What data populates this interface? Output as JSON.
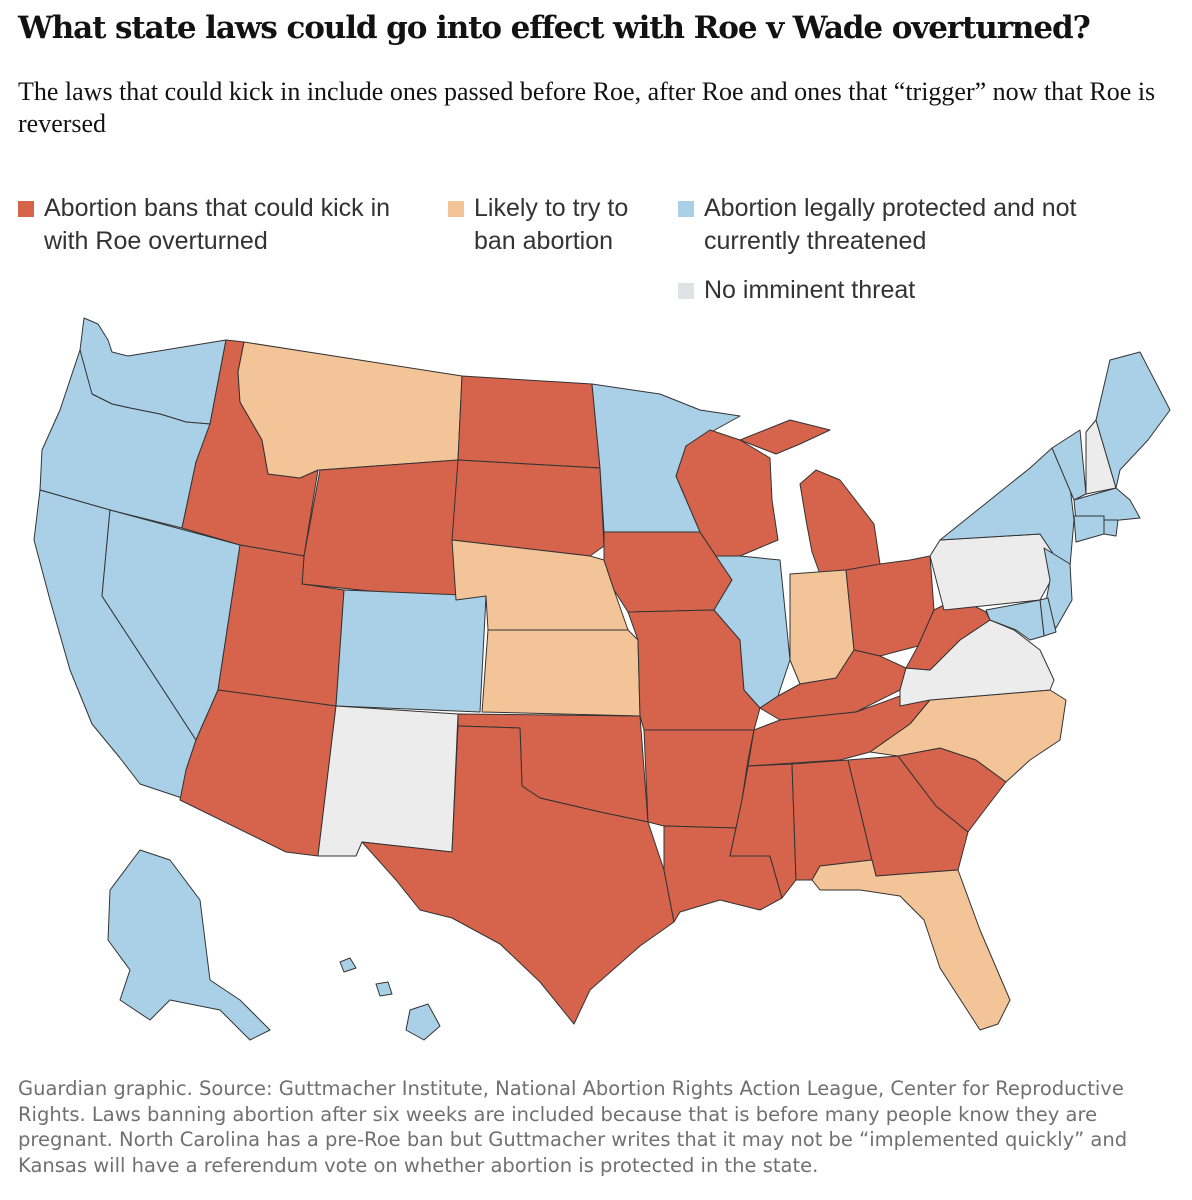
{
  "header": {
    "title": "What state laws could go into effect with Roe v Wade overturned?",
    "subtitle": "The laws that could kick in include ones passed before Roe, after Roe and ones that “trigger” now that Roe is reversed"
  },
  "legend": {
    "ban": "Abortion bans that could kick in with Roe overturned",
    "likely": "Likely to try to ban abortion",
    "protected": "Abortion legally protected and not currently threatened",
    "none": "No imminent threat"
  },
  "colors": {
    "ban": "#d6634c",
    "likely": "#f3c497",
    "protected": "#a9d0e7",
    "none": "#ececec"
  },
  "map": {
    "states": [
      {
        "name": "Washington",
        "category": "protected"
      },
      {
        "name": "Oregon",
        "category": "protected"
      },
      {
        "name": "California",
        "category": "protected"
      },
      {
        "name": "Nevada",
        "category": "protected"
      },
      {
        "name": "Idaho",
        "category": "ban"
      },
      {
        "name": "Montana",
        "category": "likely"
      },
      {
        "name": "Wyoming",
        "category": "ban"
      },
      {
        "name": "Utah",
        "category": "ban"
      },
      {
        "name": "Arizona",
        "category": "ban"
      },
      {
        "name": "Colorado",
        "category": "protected"
      },
      {
        "name": "New Mexico",
        "category": "none"
      },
      {
        "name": "North Dakota",
        "category": "ban"
      },
      {
        "name": "South Dakota",
        "category": "ban"
      },
      {
        "name": "Nebraska",
        "category": "likely"
      },
      {
        "name": "Kansas",
        "category": "likely"
      },
      {
        "name": "Oklahoma",
        "category": "ban"
      },
      {
        "name": "Texas",
        "category": "ban"
      },
      {
        "name": "Minnesota",
        "category": "protected"
      },
      {
        "name": "Iowa",
        "category": "ban"
      },
      {
        "name": "Missouri",
        "category": "ban"
      },
      {
        "name": "Arkansas",
        "category": "ban"
      },
      {
        "name": "Louisiana",
        "category": "ban"
      },
      {
        "name": "Wisconsin",
        "category": "ban"
      },
      {
        "name": "Illinois",
        "category": "protected"
      },
      {
        "name": "Michigan",
        "category": "ban"
      },
      {
        "name": "Indiana",
        "category": "likely"
      },
      {
        "name": "Ohio",
        "category": "ban"
      },
      {
        "name": "Kentucky",
        "category": "ban"
      },
      {
        "name": "Tennessee",
        "category": "ban"
      },
      {
        "name": "Mississippi",
        "category": "ban"
      },
      {
        "name": "Alabama",
        "category": "ban"
      },
      {
        "name": "Georgia",
        "category": "ban"
      },
      {
        "name": "Florida",
        "category": "likely"
      },
      {
        "name": "South Carolina",
        "category": "ban"
      },
      {
        "name": "North Carolina",
        "category": "likely"
      },
      {
        "name": "Virginia",
        "category": "none"
      },
      {
        "name": "West Virginia",
        "category": "ban"
      },
      {
        "name": "Pennsylvania",
        "category": "none"
      },
      {
        "name": "New York",
        "category": "protected"
      },
      {
        "name": "Vermont",
        "category": "protected"
      },
      {
        "name": "New Hampshire",
        "category": "none"
      },
      {
        "name": "Maine",
        "category": "protected"
      },
      {
        "name": "Massachusetts",
        "category": "protected"
      },
      {
        "name": "Rhode Island",
        "category": "protected"
      },
      {
        "name": "Connecticut",
        "category": "protected"
      },
      {
        "name": "New Jersey",
        "category": "protected"
      },
      {
        "name": "Delaware",
        "category": "protected"
      },
      {
        "name": "Maryland",
        "category": "protected"
      },
      {
        "name": "Alaska",
        "category": "protected"
      },
      {
        "name": "Hawaii",
        "category": "protected"
      }
    ]
  },
  "footnote": "Guardian graphic. Source: Guttmacher Institute, National Abortion Rights Action League, Center for Reproductive Rights. Laws banning abortion after six weeks are included because that is before many people know they are pregnant. North Carolina has a pre-Roe ban but Guttmacher writes that it may not be “implemented quickly” and Kansas will have a referendum vote on whether abortion is protected in the state."
}
